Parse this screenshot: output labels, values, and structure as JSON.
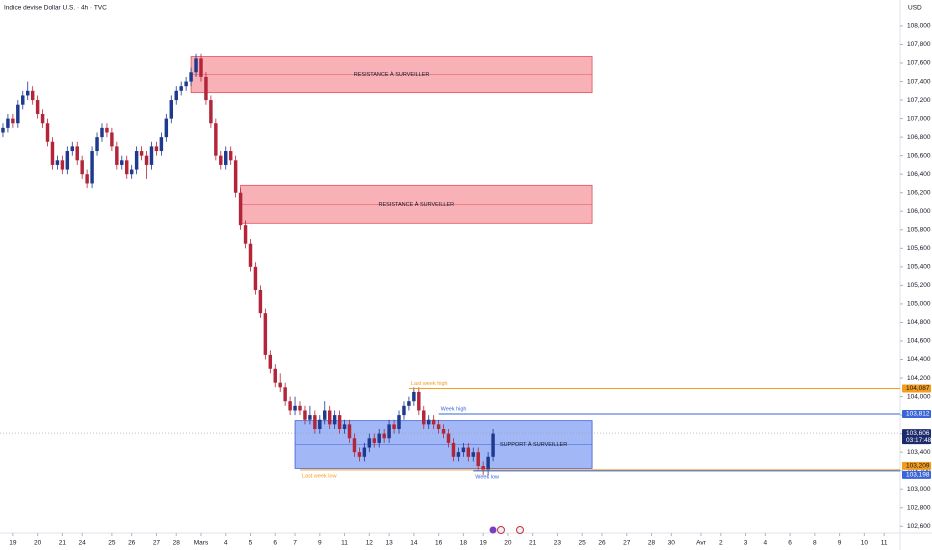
{
  "chart_data": {
    "type": "candlestick",
    "title": "Indice devise Dollar U.S. · 4h · TVC",
    "currency": "USD",
    "up_color": "#1e3a8f",
    "down_color": "#b3263a",
    "grid": false,
    "xlim": [
      -0.6,
      181.2
    ],
    "ylim": [
      102560,
      108280
    ],
    "yticks": [
      {
        "value": 102600,
        "label": "102,600"
      },
      {
        "value": 102800,
        "label": "102,800"
      },
      {
        "value": 103000,
        "label": "103,000"
      },
      {
        "value": 103200,
        "label": "103,200"
      },
      {
        "value": 103400,
        "label": "103,400"
      },
      {
        "value": 103600,
        "label": "103,600"
      },
      {
        "value": 103800,
        "label": "103,800"
      },
      {
        "value": 104000,
        "label": "104,000"
      },
      {
        "value": 104200,
        "label": "104,200"
      },
      {
        "value": 104400,
        "label": "104,400"
      },
      {
        "value": 104600,
        "label": "104,600"
      },
      {
        "value": 104800,
        "label": "104,800"
      },
      {
        "value": 105000,
        "label": "105,000"
      },
      {
        "value": 105200,
        "label": "105,200"
      },
      {
        "value": 105400,
        "label": "105,400"
      },
      {
        "value": 105600,
        "label": "105,600"
      },
      {
        "value": 105800,
        "label": "105,800"
      },
      {
        "value": 106000,
        "label": "106,000"
      },
      {
        "value": 106200,
        "label": "106,200"
      },
      {
        "value": 106400,
        "label": "106,400"
      },
      {
        "value": 106600,
        "label": "106,600"
      },
      {
        "value": 106800,
        "label": "106,800"
      },
      {
        "value": 107000,
        "label": "107,000"
      },
      {
        "value": 107200,
        "label": "107,200"
      },
      {
        "value": 107400,
        "label": "107,400"
      },
      {
        "value": 107600,
        "label": "107,600"
      },
      {
        "value": 107800,
        "label": "107,800"
      },
      {
        "value": 108000,
        "label": "108,000"
      }
    ],
    "xticks": [
      {
        "value": 2,
        "label": "19"
      },
      {
        "value": 7,
        "label": "20"
      },
      {
        "value": 12,
        "label": "21"
      },
      {
        "value": 16,
        "label": "24"
      },
      {
        "value": 22,
        "label": "25"
      },
      {
        "value": 26,
        "label": "26"
      },
      {
        "value": 31,
        "label": "27"
      },
      {
        "value": 35,
        "label": "28"
      },
      {
        "value": 40,
        "label": "Mars"
      },
      {
        "value": 45,
        "label": "4"
      },
      {
        "value": 50,
        "label": "5"
      },
      {
        "value": 55,
        "label": "6"
      },
      {
        "value": 59,
        "label": "7"
      },
      {
        "value": 64,
        "label": "9"
      },
      {
        "value": 69,
        "label": "11"
      },
      {
        "value": 74,
        "label": "12"
      },
      {
        "value": 78,
        "label": "13"
      },
      {
        "value": 83,
        "label": "14"
      },
      {
        "value": 88,
        "label": "16"
      },
      {
        "value": 93,
        "label": "18"
      },
      {
        "value": 97,
        "label": "19"
      },
      {
        "value": 102,
        "label": "20"
      },
      {
        "value": 107,
        "label": "21"
      },
      {
        "value": 112,
        "label": "23"
      },
      {
        "value": 117,
        "label": "25"
      },
      {
        "value": 121,
        "label": "26"
      },
      {
        "value": 126,
        "label": "27"
      },
      {
        "value": 131,
        "label": "28"
      },
      {
        "value": 135,
        "label": "30"
      },
      {
        "value": 141,
        "label": "Avr"
      },
      {
        "value": 145,
        "label": "2"
      },
      {
        "value": 150,
        "label": "3"
      },
      {
        "value": 154,
        "label": "4"
      },
      {
        "value": 159,
        "label": "6"
      },
      {
        "value": 164,
        "label": "8"
      },
      {
        "value": 169,
        "label": "9"
      },
      {
        "value": 174,
        "label": "10"
      },
      {
        "value": 178,
        "label": "11"
      }
    ],
    "candles": [
      [
        106850,
        106950,
        106800,
        106900
      ],
      [
        106900,
        107050,
        106850,
        107000
      ],
      [
        107000,
        107050,
        106900,
        106950
      ],
      [
        106950,
        107200,
        106900,
        107150
      ],
      [
        107150,
        107300,
        107100,
        107250
      ],
      [
        107250,
        107400,
        107200,
        107300
      ],
      [
        107300,
        107350,
        107150,
        107200
      ],
      [
        107200,
        107250,
        107000,
        107050
      ],
      [
        107050,
        107100,
        106900,
        106950
      ],
      [
        106950,
        107000,
        106700,
        106750
      ],
      [
        106750,
        106800,
        106450,
        106500
      ],
      [
        106500,
        106600,
        106450,
        106550
      ],
      [
        106550,
        106600,
        106400,
        106450
      ],
      [
        106450,
        106700,
        106400,
        106650
      ],
      [
        106650,
        106750,
        106600,
        106700
      ],
      [
        106700,
        106750,
        106500,
        106550
      ],
      [
        106550,
        106600,
        106350,
        106400
      ],
      [
        106400,
        106450,
        106250,
        106300
      ],
      [
        106300,
        106700,
        106250,
        106650
      ],
      [
        106650,
        106850,
        106600,
        106800
      ],
      [
        106800,
        106950,
        106750,
        106900
      ],
      [
        106900,
        106950,
        106800,
        106850
      ],
      [
        106850,
        106900,
        106650,
        106700
      ],
      [
        106700,
        106750,
        106450,
        106500
      ],
      [
        106500,
        106600,
        106450,
        106550
      ],
      [
        106550,
        106600,
        106350,
        106400
      ],
      [
        106400,
        106500,
        106350,
        106450
      ],
      [
        106450,
        106700,
        106400,
        106650
      ],
      [
        106650,
        106700,
        106550,
        106600
      ],
      [
        106600,
        106650,
        106350,
        106500
      ],
      [
        106500,
        106750,
        106450,
        106700
      ],
      [
        106700,
        106750,
        106600,
        106650
      ],
      [
        106650,
        106850,
        106600,
        106800
      ],
      [
        106800,
        107050,
        106750,
        107000
      ],
      [
        107000,
        107250,
        106950,
        107200
      ],
      [
        107200,
        107350,
        107150,
        107300
      ],
      [
        107300,
        107400,
        107250,
        107350
      ],
      [
        107350,
        107450,
        107300,
        107400
      ],
      [
        107400,
        107550,
        107350,
        107500
      ],
      [
        107500,
        107700,
        107450,
        107650
      ],
      [
        107650,
        107700,
        107400,
        107450
      ],
      [
        107450,
        107500,
        107150,
        107200
      ],
      [
        107200,
        107250,
        106900,
        106950
      ],
      [
        106950,
        107000,
        106550,
        106600
      ],
      [
        106600,
        106650,
        106450,
        106500
      ],
      [
        106500,
        106700,
        106450,
        106650
      ],
      [
        106650,
        106700,
        106500,
        106550
      ],
      [
        106550,
        106600,
        106150,
        106200
      ],
      [
        106200,
        106250,
        105800,
        105850
      ],
      [
        105850,
        105900,
        105600,
        105650
      ],
      [
        105650,
        105700,
        105350,
        105400
      ],
      [
        105400,
        105450,
        105100,
        105150
      ],
      [
        105150,
        105200,
        104850,
        104900
      ],
      [
        104900,
        104950,
        104400,
        104450
      ],
      [
        104450,
        104500,
        104250,
        104300
      ],
      [
        104300,
        104350,
        104100,
        104150
      ],
      [
        104150,
        104250,
        104050,
        104100
      ],
      [
        104100,
        104150,
        103900,
        103950
      ],
      [
        103950,
        104000,
        103800,
        103850
      ],
      [
        103850,
        104000,
        103800,
        103900
      ],
      [
        103900,
        103950,
        103800,
        103850
      ],
      [
        103850,
        103900,
        103700,
        103750
      ],
      [
        103750,
        103900,
        103700,
        103800
      ],
      [
        103800,
        103850,
        103600,
        103650
      ],
      [
        103650,
        103800,
        103600,
        103750
      ],
      [
        103750,
        103950,
        103700,
        103850
      ],
      [
        103850,
        103900,
        103650,
        103700
      ],
      [
        103700,
        103850,
        103650,
        103800
      ],
      [
        103800,
        103850,
        103600,
        103650
      ],
      [
        103650,
        103750,
        103600,
        103700
      ],
      [
        103700,
        103750,
        103500,
        103550
      ],
      [
        103550,
        103600,
        103350,
        103400
      ],
      [
        103400,
        103450,
        103300,
        103350
      ],
      [
        103350,
        103500,
        103300,
        103450
      ],
      [
        103450,
        103600,
        103400,
        103550
      ],
      [
        103550,
        103600,
        103450,
        103500
      ],
      [
        103500,
        103650,
        103450,
        103600
      ],
      [
        103600,
        103650,
        103500,
        103550
      ],
      [
        103550,
        103750,
        103500,
        103700
      ],
      [
        103700,
        103750,
        103600,
        103650
      ],
      [
        103650,
        103850,
        103600,
        103800
      ],
      [
        103800,
        103950,
        103750,
        103900
      ],
      [
        103900,
        104000,
        103850,
        103950
      ],
      [
        103950,
        104100,
        103900,
        104050
      ],
      [
        104050,
        104100,
        103800,
        103850
      ],
      [
        103850,
        103900,
        103650,
        103700
      ],
      [
        103700,
        103800,
        103650,
        103750
      ],
      [
        103750,
        103800,
        103650,
        103700
      ],
      [
        103700,
        103750,
        103600,
        103650
      ],
      [
        103650,
        103700,
        103550,
        103600
      ],
      [
        103600,
        103650,
        103450,
        103500
      ],
      [
        103500,
        103550,
        103300,
        103350
      ],
      [
        103350,
        103450,
        103300,
        103400
      ],
      [
        103400,
        103500,
        103350,
        103450
      ],
      [
        103450,
        103500,
        103300,
        103350
      ],
      [
        103350,
        103450,
        103300,
        103400
      ],
      [
        103400,
        103450,
        103200,
        103250
      ],
      [
        103250,
        103300,
        103150,
        103200
      ],
      [
        103200,
        103400,
        103150,
        103350
      ],
      [
        103350,
        103650,
        103300,
        103600
      ]
    ],
    "zones": [
      {
        "label": "RESISTANCE À SURVEILLER",
        "top": 107670,
        "bottom": 107280,
        "from": 38,
        "to": 119,
        "fill": "#f7a3aa",
        "stroke": "#e0505c"
      },
      {
        "label": "RESISTANCE À SURVEILLER",
        "top": 106280,
        "bottom": 105870,
        "from": 48,
        "to": 119,
        "fill": "#f7a3aa",
        "stroke": "#e0505c"
      },
      {
        "label": "SUPPORT À SURVEILLER",
        "top": 103740,
        "bottom": 103225,
        "from": 59,
        "to": 119,
        "fill": "#92acf5",
        "stroke": "#3d5bd9"
      }
    ],
    "levels": [
      {
        "name": "Last week high",
        "value": 104087,
        "value_label": "104,087",
        "color": "#f29d1f",
        "from": 82,
        "side": "above"
      },
      {
        "name": "Week high",
        "value": 103812,
        "value_label": "103,812",
        "color": "#3a64d8",
        "from": 88,
        "side": "above"
      },
      {
        "name": "Last week low",
        "value": 103209,
        "value_label": "103,209",
        "color": "#f29d1f",
        "from": 60,
        "side": "below"
      },
      {
        "name": "Week low",
        "value": 103198,
        "value_label": "103,198",
        "color": "#3a64d8",
        "from": 95,
        "side": "below"
      }
    ],
    "last_price": {
      "value": 103606,
      "value_label": "103,606",
      "countdown": "03:17:48",
      "color": "#1b2a6b"
    }
  }
}
